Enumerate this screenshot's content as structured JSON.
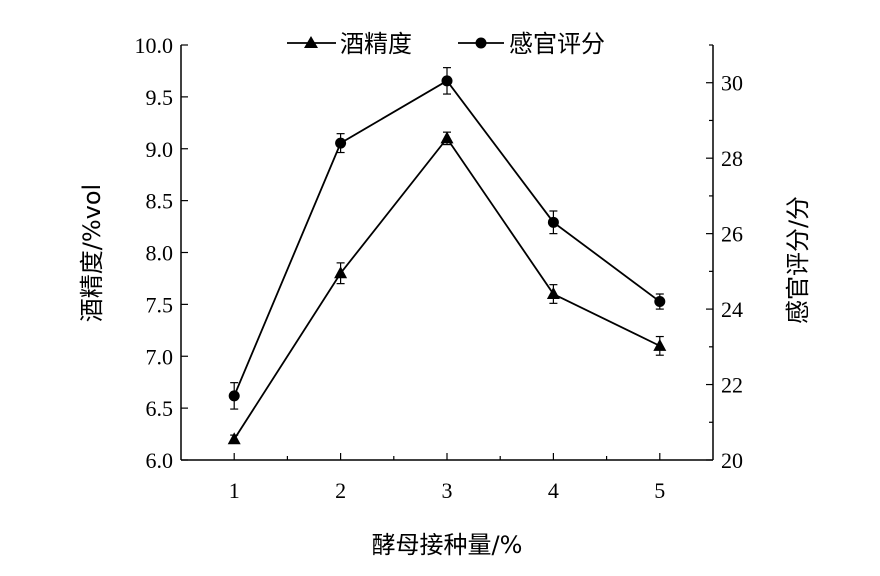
{
  "chart_data": {
    "type": "line",
    "x": [
      1,
      2,
      3,
      4,
      5
    ],
    "xlabel": "酵母接种量/%",
    "ylabel_left": "酒精度/%vol",
    "ylabel_right": "感官评分/分",
    "xlim": [
      0.5,
      5.5
    ],
    "ylim_left": [
      6.0,
      10.0
    ],
    "ylim_right": [
      20,
      31
    ],
    "x_ticks": [
      1,
      2,
      3,
      4,
      5
    ],
    "y_ticks_left": [
      "6.0",
      "6.5",
      "7.0",
      "7.5",
      "8.0",
      "8.5",
      "9.0",
      "9.5",
      "10.0"
    ],
    "y_ticks_right": [
      "20",
      "22",
      "24",
      "26",
      "28",
      "30"
    ],
    "grid": false,
    "legend_position": "top",
    "series": [
      {
        "name": "酒精度",
        "axis": "left",
        "marker": "triangle",
        "values": [
          6.2,
          7.8,
          9.1,
          7.6,
          7.1
        ],
        "errors": [
          0.04,
          0.1,
          0.06,
          0.09,
          0.09
        ]
      },
      {
        "name": "感官评分",
        "axis": "right",
        "marker": "circle",
        "values": [
          21.7,
          28.4,
          30.05,
          26.3,
          24.2
        ],
        "errors": [
          0.35,
          0.25,
          0.35,
          0.3,
          0.2
        ]
      }
    ]
  }
}
